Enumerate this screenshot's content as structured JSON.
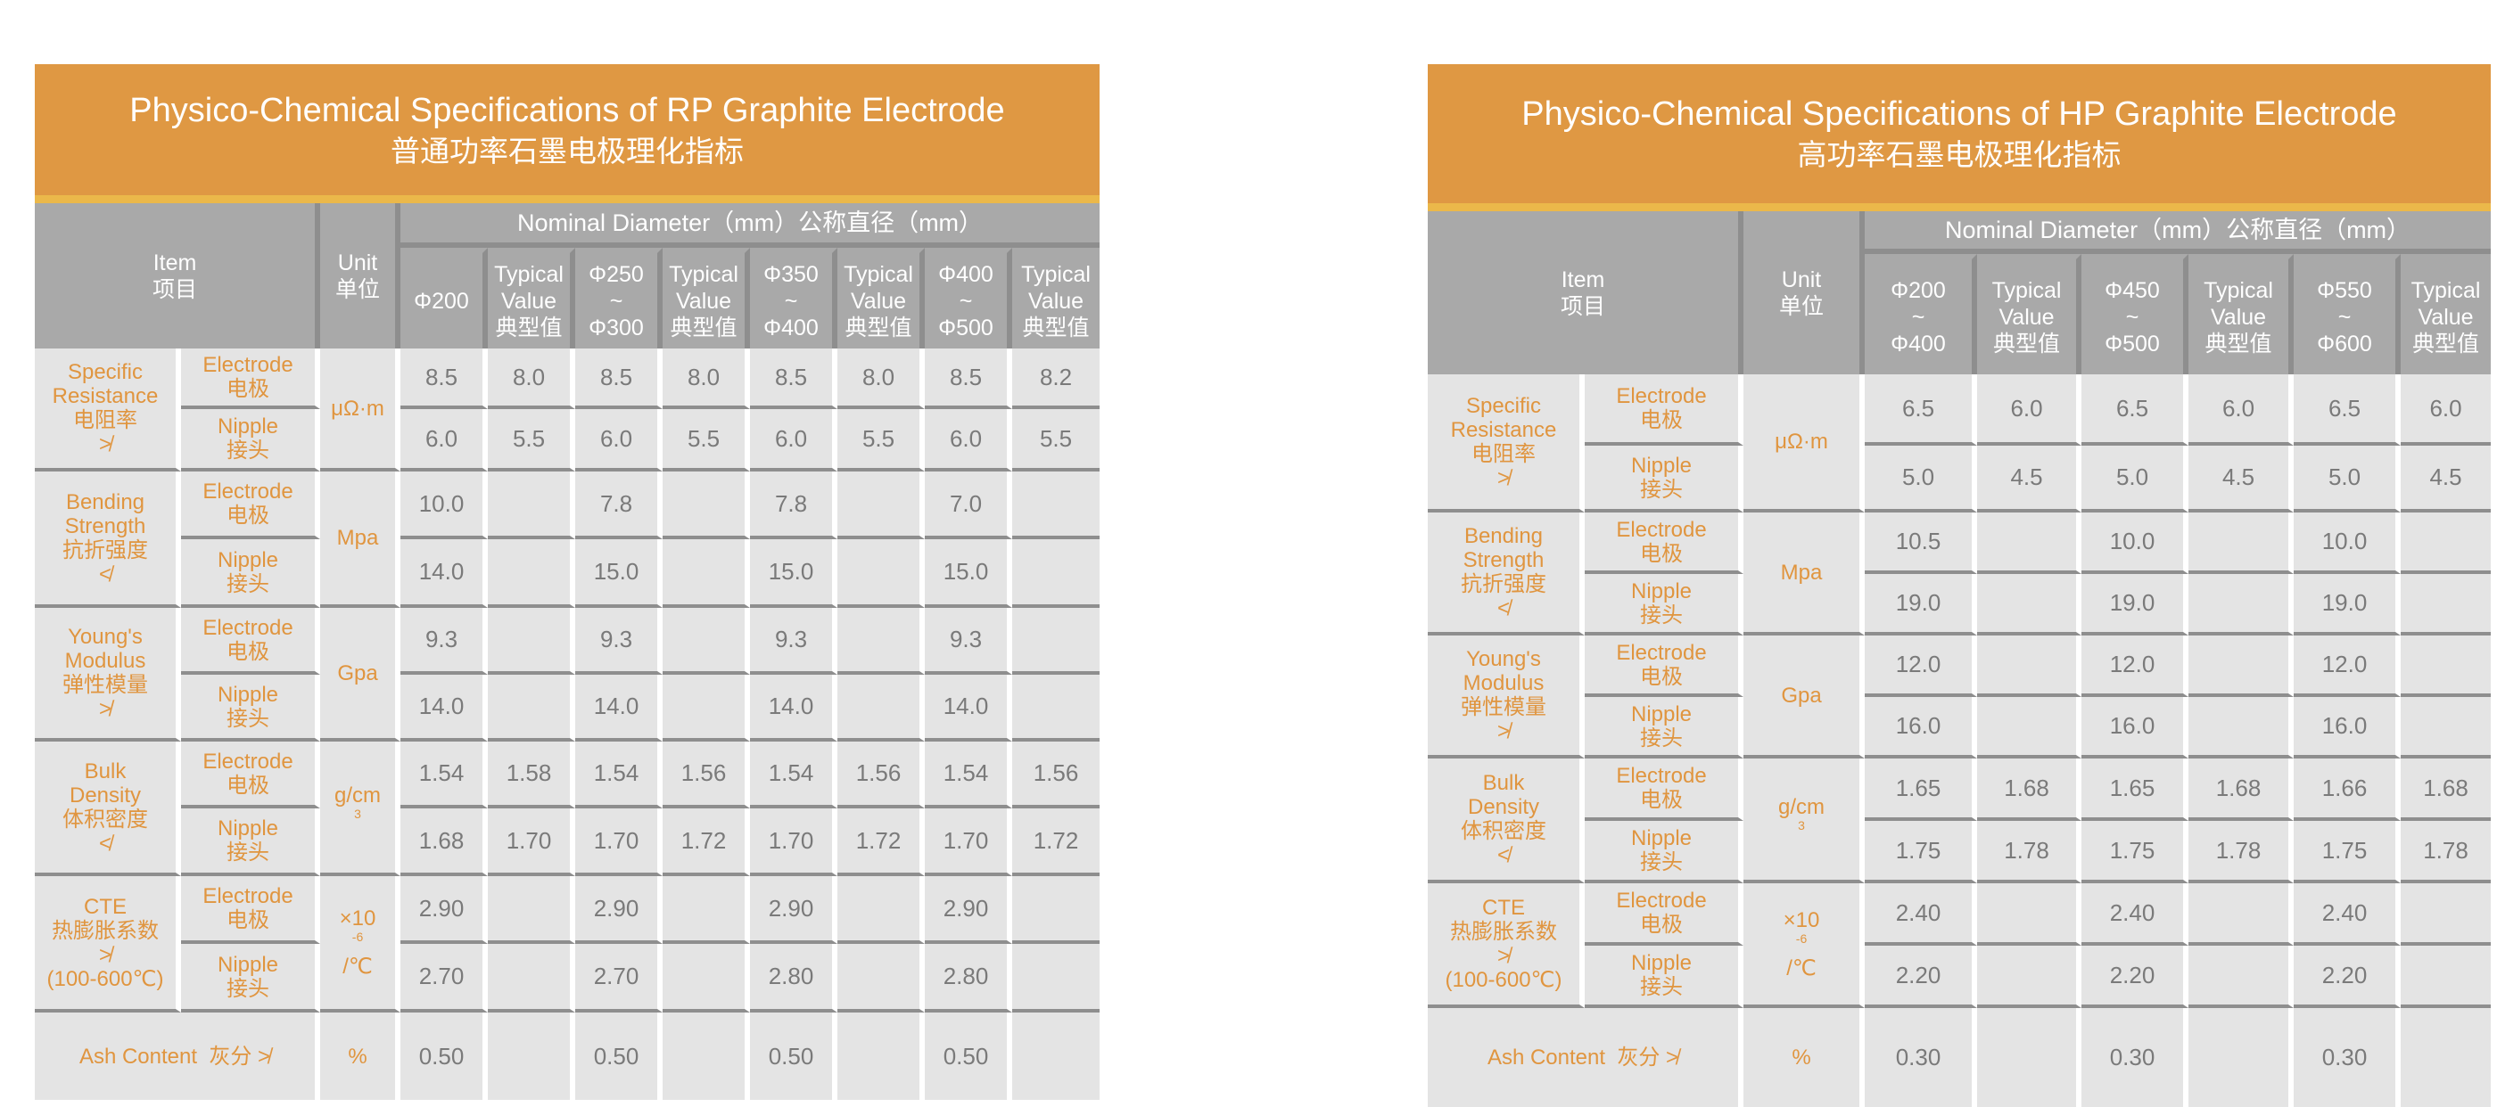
{
  "tables": [
    {
      "title_en": "Physico-Chemical Specifications of RP Graphite Electrode",
      "title_cn": "普通功率石墨电极理化指标",
      "header": {
        "item": "Item",
        "item_cn": "项目",
        "unit": "Unit",
        "unit_cn": "单位",
        "nominal": "Nominal Diameter（mm）公称直径（mm）"
      },
      "columns": [
        {
          "lines": [
            "Φ200"
          ]
        },
        {
          "lines": [
            "Typical",
            "Value",
            "典型值"
          ]
        },
        {
          "lines": [
            "Φ250",
            "~",
            "Φ300"
          ]
        },
        {
          "lines": [
            "Typical",
            "Value",
            "典型值"
          ]
        },
        {
          "lines": [
            "Φ350",
            "~",
            "Φ400"
          ]
        },
        {
          "lines": [
            "Typical",
            "Value",
            "典型值"
          ]
        },
        {
          "lines": [
            "Φ400",
            "~",
            "Φ500"
          ]
        },
        {
          "lines": [
            "Typical",
            "Value",
            "典型值"
          ]
        }
      ],
      "rows": [
        {
          "name": [
            "Specific",
            "Resistance",
            "电阻率",
            "≯"
          ],
          "unit": {
            "base": "μΩ·m",
            "sup": "",
            "tail": ""
          },
          "sub": [
            {
              "label": "Electrode",
              "label_cn": "电极",
              "values": [
                "8.5",
                "8.0",
                "8.5",
                "8.0",
                "8.5",
                "8.0",
                "8.5",
                "8.2"
              ]
            },
            {
              "label": "Nipple",
              "label_cn": "接头",
              "values": [
                "6.0",
                "5.5",
                "6.0",
                "5.5",
                "6.0",
                "5.5",
                "6.0",
                "5.5"
              ]
            }
          ]
        },
        {
          "name": [
            "Bending",
            "Strength",
            "抗折强度",
            "≮"
          ],
          "unit": {
            "base": "Mpa",
            "sup": "",
            "tail": ""
          },
          "sub": [
            {
              "label": "Electrode",
              "label_cn": "电极",
              "values": [
                "10.0",
                "",
                "7.8",
                "",
                "7.8",
                "",
                "7.0",
                ""
              ]
            },
            {
              "label": "Nipple",
              "label_cn": "接头",
              "values": [
                "14.0",
                "",
                "15.0",
                "",
                "15.0",
                "",
                "15.0",
                ""
              ]
            }
          ]
        },
        {
          "name": [
            "Young's",
            "Modulus",
            "弹性模量",
            "≯"
          ],
          "unit": {
            "base": "Gpa",
            "sup": "",
            "tail": ""
          },
          "sub": [
            {
              "label": "Electrode",
              "label_cn": "电极",
              "values": [
                "9.3",
                "",
                "9.3",
                "",
                "9.3",
                "",
                "9.3",
                ""
              ]
            },
            {
              "label": "Nipple",
              "label_cn": "接头",
              "values": [
                "14.0",
                "",
                "14.0",
                "",
                "14.0",
                "",
                "14.0",
                ""
              ]
            }
          ]
        },
        {
          "name": [
            "Bulk",
            "Density",
            "体积密度",
            "≮"
          ],
          "unit": {
            "base": "g/cm",
            "sup": "3",
            "tail": ""
          },
          "sub": [
            {
              "label": "Electrode",
              "label_cn": "电极",
              "values": [
                "1.54",
                "1.58",
                "1.54",
                "1.56",
                "1.54",
                "1.56",
                "1.54",
                "1.56"
              ]
            },
            {
              "label": "Nipple",
              "label_cn": "接头",
              "values": [
                "1.68",
                "1.70",
                "1.70",
                "1.72",
                "1.70",
                "1.72",
                "1.70",
                "1.72"
              ]
            }
          ]
        },
        {
          "name": [
            "CTE",
            "热膨胀系数",
            "≯",
            "(100-600℃)"
          ],
          "unit": {
            "base": "×10",
            "sup": "-6",
            "tail": "/℃"
          },
          "sub": [
            {
              "label": "Electrode",
              "label_cn": "电极",
              "values": [
                "2.90",
                "",
                "2.90",
                "",
                "2.90",
                "",
                "2.90",
                ""
              ]
            },
            {
              "label": "Nipple",
              "label_cn": "接头",
              "values": [
                "2.70",
                "",
                "2.70",
                "",
                "2.80",
                "",
                "2.80",
                ""
              ]
            }
          ]
        }
      ],
      "ash": {
        "label": "Ash Content  灰分 ≯",
        "unit": "%",
        "values": [
          "0.50",
          "",
          "0.50",
          "",
          "0.50",
          "",
          "0.50",
          ""
        ]
      }
    },
    {
      "title_en": "Physico-Chemical Specifications of HP Graphite Electrode",
      "title_cn": "高功率石墨电极理化指标",
      "header": {
        "item": "Item",
        "item_cn": "项目",
        "unit": "Unit",
        "unit_cn": "单位",
        "nominal": "Nominal Diameter（mm）公称直径（mm）"
      },
      "columns": [
        {
          "lines": [
            "Φ200",
            "~",
            "Φ400"
          ]
        },
        {
          "lines": [
            "Typical",
            "Value",
            "典型值"
          ]
        },
        {
          "lines": [
            "Φ450",
            "~",
            "Φ500"
          ]
        },
        {
          "lines": [
            "Typical",
            "Value",
            "典型值"
          ]
        },
        {
          "lines": [
            "Φ550",
            "~",
            "Φ600"
          ]
        },
        {
          "lines": [
            "Typical",
            "Value",
            "典型值"
          ]
        }
      ],
      "rows": [
        {
          "name": [
            "Specific",
            "Resistance",
            "电阻率",
            "≯"
          ],
          "unit": {
            "base": "μΩ·m",
            "sup": "",
            "tail": ""
          },
          "sub": [
            {
              "label": "Electrode",
              "label_cn": "电极",
              "values": [
                "6.5",
                "6.0",
                "6.5",
                "6.0",
                "6.5",
                "6.0"
              ]
            },
            {
              "label": "Nipple",
              "label_cn": "接头",
              "values": [
                "5.0",
                "4.5",
                "5.0",
                "4.5",
                "5.0",
                "4.5"
              ]
            }
          ]
        },
        {
          "name": [
            "Bending",
            "Strength",
            "抗折强度",
            "≮"
          ],
          "unit": {
            "base": "Mpa",
            "sup": "",
            "tail": ""
          },
          "sub": [
            {
              "label": "Electrode",
              "label_cn": "电极",
              "values": [
                "10.5",
                "",
                "10.0",
                "",
                "10.0",
                ""
              ]
            },
            {
              "label": "Nipple",
              "label_cn": "接头",
              "values": [
                "19.0",
                "",
                "19.0",
                "",
                "19.0",
                ""
              ]
            }
          ]
        },
        {
          "name": [
            "Young's",
            "Modulus",
            "弹性模量",
            "≯"
          ],
          "unit": {
            "base": "Gpa",
            "sup": "",
            "tail": ""
          },
          "sub": [
            {
              "label": "Electrode",
              "label_cn": "电极",
              "values": [
                "12.0",
                "",
                "12.0",
                "",
                "12.0",
                ""
              ]
            },
            {
              "label": "Nipple",
              "label_cn": "接头",
              "values": [
                "16.0",
                "",
                "16.0",
                "",
                "16.0",
                ""
              ]
            }
          ]
        },
        {
          "name": [
            "Bulk",
            "Density",
            "体积密度",
            "≮"
          ],
          "unit": {
            "base": "g/cm",
            "sup": "3",
            "tail": ""
          },
          "sub": [
            {
              "label": "Electrode",
              "label_cn": "电极",
              "values": [
                "1.65",
                "1.68",
                "1.65",
                "1.68",
                "1.66",
                "1.68"
              ]
            },
            {
              "label": "Nipple",
              "label_cn": "接头",
              "values": [
                "1.75",
                "1.78",
                "1.75",
                "1.78",
                "1.75",
                "1.78"
              ]
            }
          ]
        },
        {
          "name": [
            "CTE",
            "热膨胀系数",
            "≯",
            "(100-600℃)"
          ],
          "unit": {
            "base": "×10",
            "sup": "-6",
            "tail": " /℃"
          },
          "sub": [
            {
              "label": "Electrode",
              "label_cn": "电极",
              "values": [
                "2.40",
                "",
                "2.40",
                "",
                "2.40",
                ""
              ]
            },
            {
              "label": "Nipple",
              "label_cn": "接头",
              "values": [
                "2.20",
                "",
                "2.20",
                "",
                "2.20",
                ""
              ]
            }
          ]
        }
      ],
      "ash": {
        "label": "Ash Content  灰分 ≯",
        "unit": "%",
        "values": [
          "0.30",
          "",
          "0.30",
          "",
          "0.30",
          ""
        ]
      }
    }
  ]
}
